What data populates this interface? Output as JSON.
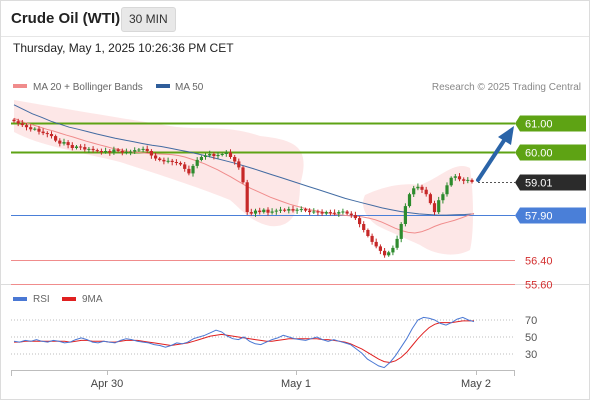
{
  "header": {
    "title": "Crude Oil (WTI)",
    "timeframe": "30 MIN",
    "timestamp": "Thursday, May 1, 2025 10:26:36 PM CET"
  },
  "legend": {
    "ma20_label": "MA 20 + Bollinger Bands",
    "ma50_label": "MA 50",
    "credit": "Research © 2025 Trading Central",
    "ma20_color": "#f08c8c",
    "ma50_color": "#2f5d9a"
  },
  "rsi_legend": {
    "rsi_label": "RSI",
    "ma_label": "9MA",
    "rsi_color": "#4a78d4",
    "ma_color": "#e02020"
  },
  "colors": {
    "up_candle": "#2e8b2e",
    "down_candle": "#c62828",
    "resistance": "#5ea314",
    "pivot": "#4a7fd8",
    "support": "#f08c8c",
    "current": "#2b2b2b",
    "arrow": "#2a64a8",
    "bollinger_fill": "#fde3e3"
  },
  "chart_data": [
    {
      "type": "candlestick",
      "y_range": [
        55.2,
        62.0
      ],
      "x_ticks": [
        "Apr 30",
        "May 1",
        "May 2"
      ],
      "levels": [
        {
          "label": "61.00",
          "value": 61.0,
          "kind": "resistance"
        },
        {
          "label": "60.00",
          "value": 60.0,
          "kind": "resistance"
        },
        {
          "label": "59.01",
          "value": 59.01,
          "kind": "current"
        },
        {
          "label": "57.90",
          "value": 57.9,
          "kind": "pivot"
        },
        {
          "label": "56.40",
          "value": 56.4,
          "kind": "support"
        },
        {
          "label": "55.60",
          "value": 55.6,
          "kind": "support"
        }
      ],
      "close": [
        61.05,
        60.98,
        60.92,
        60.85,
        60.78,
        60.8,
        60.7,
        60.65,
        60.62,
        60.55,
        60.4,
        60.3,
        60.35,
        60.25,
        60.15,
        60.2,
        60.18,
        60.1,
        60.12,
        60.08,
        60.05,
        60.02,
        60.05,
        60.0,
        60.1,
        60.05,
        60.0,
        60.02,
        60.03,
        60.08,
        60.1,
        60.12,
        60.05,
        59.9,
        59.8,
        59.75,
        59.7,
        59.72,
        59.68,
        59.65,
        59.6,
        59.45,
        59.3,
        59.55,
        59.75,
        59.85,
        59.9,
        59.95,
        59.88,
        59.92,
        59.95,
        60.0,
        59.85,
        59.7,
        59.5,
        59.0,
        58.0,
        57.95,
        58.05,
        58.0,
        58.08,
        57.98,
        58.02,
        58.05,
        58.08,
        58.05,
        58.1,
        58.05,
        58.08,
        58.1,
        58.05,
        58.0,
        58.02,
        58.0,
        57.95,
        58.0,
        57.98,
        57.95,
        58.0,
        58.02,
        57.95,
        57.9,
        57.8,
        57.6,
        57.4,
        57.2,
        57.0,
        56.85,
        56.7,
        56.55,
        56.65,
        56.8,
        57.1,
        57.6,
        58.2,
        58.6,
        58.8,
        58.85,
        58.75,
        58.6,
        58.3,
        58.0,
        58.4,
        58.6,
        58.9,
        59.15,
        59.2,
        59.1,
        59.05,
        59.08,
        59.01
      ],
      "ma20": [
        61.15,
        61.05,
        60.98,
        60.92,
        60.85,
        60.78,
        60.72,
        60.65,
        60.58,
        60.52,
        60.45,
        60.38,
        60.32,
        60.26,
        60.2,
        60.14,
        60.1,
        60.05,
        60.02,
        60.0,
        59.98,
        59.96,
        59.95,
        59.94,
        59.93,
        59.9,
        59.85,
        59.78,
        59.7,
        59.62,
        59.52,
        59.42,
        59.3,
        59.18,
        59.05,
        58.92,
        58.8,
        58.7,
        58.6,
        58.5,
        58.42,
        58.34,
        58.26,
        58.2,
        58.14,
        58.08,
        58.04,
        58.0,
        57.96,
        57.92,
        57.9,
        57.88,
        57.86,
        57.84,
        57.8,
        57.74,
        57.66,
        57.56,
        57.46,
        57.38,
        57.32,
        57.3,
        57.34,
        57.42,
        57.52,
        57.6,
        57.66,
        57.72,
        57.8,
        57.88,
        57.96
      ],
      "ma50": [
        61.6,
        61.45,
        61.3,
        61.18,
        61.05,
        60.95,
        60.85,
        60.78,
        60.7,
        60.62,
        60.55,
        60.48,
        60.42,
        60.36,
        60.3,
        60.24,
        60.2,
        60.14,
        60.08,
        60.02,
        59.95,
        59.88,
        59.8,
        59.72,
        59.64,
        59.55,
        59.46,
        59.36,
        59.26,
        59.16,
        59.06,
        58.96,
        58.86,
        58.76,
        58.66,
        58.56,
        58.46,
        58.38,
        58.3,
        58.22,
        58.14,
        58.08,
        58.02,
        57.98,
        57.94,
        57.92,
        57.9,
        57.9,
        57.91,
        57.92,
        57.94
      ]
    },
    {
      "type": "line",
      "name_labels": [
        "RSI",
        "9MA"
      ],
      "y_range": [
        0,
        100
      ],
      "y_ticks": [
        70,
        50,
        30
      ],
      "rsi": [
        45,
        44,
        46,
        45,
        47,
        45,
        44,
        46,
        45,
        43,
        44,
        47,
        49,
        47,
        44,
        43,
        45,
        44,
        43,
        46,
        48,
        47,
        45,
        44,
        43,
        41,
        40,
        38,
        40,
        43,
        42,
        44,
        48,
        50,
        52,
        55,
        58,
        56,
        51,
        48,
        47,
        50,
        45,
        42,
        41,
        44,
        47,
        49,
        52,
        50,
        48,
        47,
        46,
        48,
        50,
        47,
        45,
        47,
        45,
        43,
        41,
        36,
        31,
        24,
        20,
        16,
        14,
        20,
        28,
        38,
        48,
        60,
        70,
        73,
        72,
        70,
        66,
        64,
        67,
        71,
        73,
        70,
        68
      ],
      "ma9": [
        44,
        44,
        45,
        45,
        45,
        45,
        45,
        45,
        45,
        45,
        44,
        45,
        46,
        46,
        45,
        45,
        45,
        44,
        44,
        45,
        46,
        46,
        46,
        45,
        44,
        43,
        42,
        41,
        40,
        41,
        42,
        43,
        45,
        47,
        49,
        51,
        52,
        53,
        52,
        51,
        50,
        49,
        48,
        47,
        46,
        45,
        45,
        46,
        47,
        48,
        48,
        48,
        48,
        48,
        48,
        47,
        47,
        46,
        45,
        44,
        42,
        39,
        36,
        32,
        28,
        24,
        21,
        20,
        22,
        26,
        32,
        40,
        48,
        55,
        61,
        65,
        67,
        67,
        67,
        68,
        69,
        69,
        69
      ]
    }
  ]
}
